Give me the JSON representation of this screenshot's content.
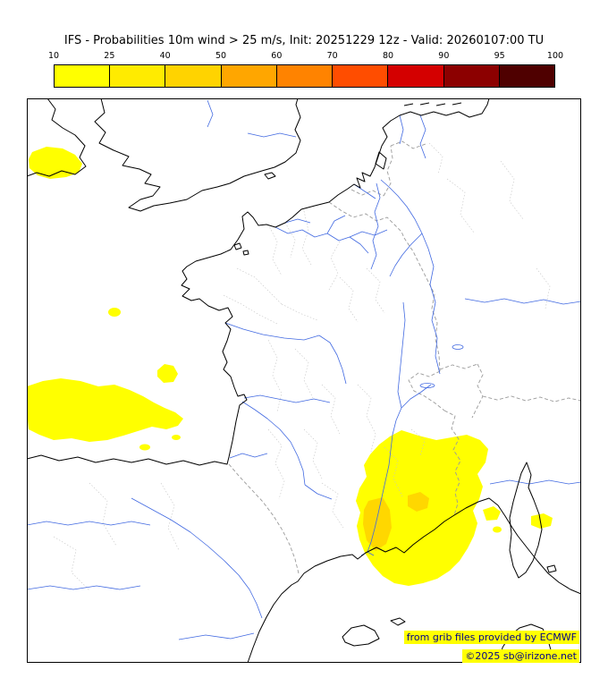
{
  "title": "IFS - Probabilities 10m wind > 25 m/s, Init: 20251229 12z - Valid: 20260107:00 TU",
  "colorbar": {
    "tick_labels": [
      "10",
      "25",
      "40",
      "50",
      "60",
      "70",
      "80",
      "90",
      "95",
      "100"
    ],
    "colors": [
      "#ffff00",
      "#ffeb00",
      "#ffd300",
      "#ffa600",
      "#ff8300",
      "#ff4d00",
      "#d40000",
      "#8c0000",
      "#4f0000"
    ]
  },
  "credits": {
    "line1": "from grib files provided by ECMWF",
    "line2": "©2025 sb@irizone.net",
    "highlight_color": "#ffff00",
    "text_color": "#00008b"
  },
  "map": {
    "probability_fill": "#ffff00",
    "probability_fill_mid": "#ffd700",
    "coast_color": "#000000",
    "river_color": "#4169e1",
    "border_color": "#9a9a9a",
    "department_color": "#c4c4c4"
  }
}
